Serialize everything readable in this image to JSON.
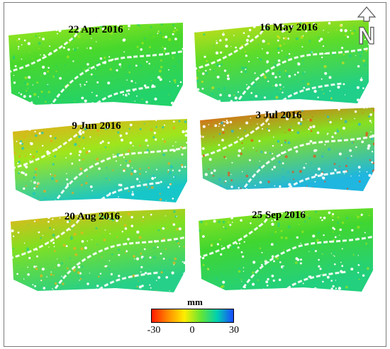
{
  "panels": [
    {
      "date": "22 Apr 2016",
      "base": "#48d82c",
      "hot": "#a6e81c",
      "cold": "#22d26a"
    },
    {
      "date": "16 May 2016",
      "base": "#5edc28",
      "hot": "#d8de18",
      "cold": "#1fcf8a"
    },
    {
      "date": "9 Jun 2016",
      "base": "#9ee61c",
      "hot": "#f0a41a",
      "cold": "#17c6c8"
    },
    {
      "date": "3 Jul 2016",
      "base": "#86e020",
      "hot": "#ee4a16",
      "cold": "#1fb6e0"
    },
    {
      "date": "20 Aug 2016",
      "base": "#7fe022",
      "hot": "#f0b21a",
      "cold": "#26d088"
    },
    {
      "date": "25 Sep 2016",
      "base": "#40d630",
      "hot": "#9ee61c",
      "cold": "#22d07e"
    }
  ],
  "colorbar": {
    "unit": "mm",
    "min_label": "-30",
    "mid_label": "0",
    "max_label": "30",
    "min": -30,
    "max": 30,
    "colors": [
      "#ff1a00",
      "#ff8c00",
      "#ffee00",
      "#66e633",
      "#00d0b0",
      "#1a4bff"
    ]
  },
  "north_arrow": {
    "label": "N",
    "icon": "north-arrow-icon"
  },
  "colors": {
    "background": "#ffffff",
    "frame": "#7a7a7a"
  }
}
